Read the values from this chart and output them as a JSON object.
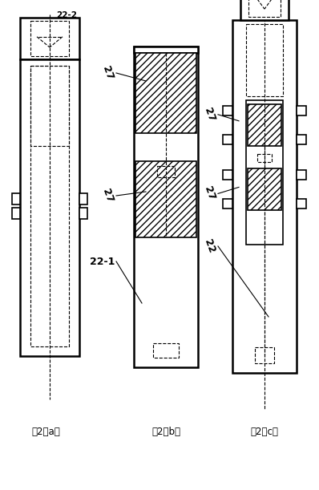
{
  "title_a": "图2（a）",
  "title_b": "图2（b）",
  "title_c": "图2（c）",
  "label_22_2": "22-2",
  "label_27_b_top": "27",
  "label_27_b_bot": "27",
  "label_22_1": "22-1",
  "label_27_c_top": "27",
  "label_27_c_bot": "27",
  "label_22_c": "22",
  "hatch_pattern": "////",
  "line_color": "#000000",
  "bg_color": "#ffffff",
  "fig_width": 3.98,
  "fig_height": 6.11,
  "dpi": 100
}
